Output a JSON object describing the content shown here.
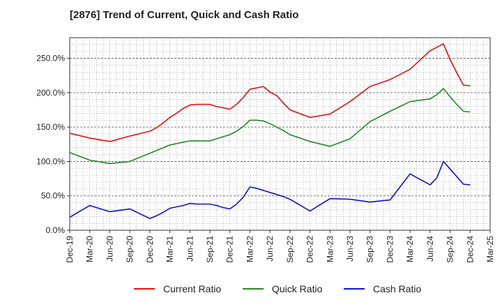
{
  "chart_data": {
    "type": "line",
    "title": "[2876]  Trend of Current, Quick and Cash Ratio",
    "xlabel": "",
    "ylabel": "",
    "ylim": [
      0,
      280
    ],
    "y_ticks": [
      0,
      50,
      100,
      150,
      200,
      250
    ],
    "y_tick_labels": [
      "0.0%",
      "50.0%",
      "100.0%",
      "150.0%",
      "200.0%",
      "250.0%"
    ],
    "x_tick_labels": [
      "Dec-19",
      "Mar-20",
      "Jun-20",
      "Sep-20",
      "Dec-20",
      "Mar-21",
      "Jun-21",
      "Sep-21",
      "Dec-21",
      "Mar-22",
      "Jun-22",
      "Sep-22",
      "Dec-22",
      "Mar-23",
      "Jun-23",
      "Sep-23",
      "Dec-23",
      "Mar-24",
      "Jun-24",
      "Sep-24",
      "Dec-24",
      "Mar-25"
    ],
    "x_index_range": [
      0,
      63
    ],
    "grid": true,
    "legend_position": "bottom",
    "series": [
      {
        "name": "Current Ratio",
        "color": "#dd1111",
        "x": [
          0,
          3,
          6,
          9,
          12,
          13,
          14,
          15,
          16,
          17,
          18,
          19,
          20,
          21,
          22,
          23,
          24,
          25,
          26,
          27,
          28,
          29,
          30,
          31,
          32,
          33,
          36,
          39,
          42,
          45,
          48,
          51,
          54,
          55,
          56,
          57,
          58,
          59,
          60
        ],
        "values": [
          141,
          134,
          129,
          137,
          144,
          149,
          156,
          164,
          170,
          177,
          182,
          183,
          183,
          183,
          180,
          178,
          176,
          183,
          193,
          205,
          207,
          209,
          201,
          196,
          185,
          175,
          164,
          169,
          187,
          209,
          219,
          234,
          261,
          266,
          271,
          248,
          229,
          211,
          210
        ]
      },
      {
        "name": "Quick Ratio",
        "color": "#228822",
        "x": [
          0,
          3,
          6,
          9,
          12,
          13,
          14,
          15,
          16,
          17,
          18,
          19,
          20,
          21,
          22,
          23,
          24,
          25,
          26,
          27,
          28,
          29,
          30,
          31,
          32,
          33,
          36,
          39,
          42,
          45,
          48,
          51,
          54,
          55,
          56,
          57,
          58,
          59,
          60
        ],
        "values": [
          113,
          102,
          97,
          100,
          112,
          116,
          120,
          124,
          126,
          128,
          130,
          130,
          130,
          130,
          133,
          136,
          139,
          144,
          151,
          160,
          160,
          159,
          155,
          150,
          145,
          139,
          129,
          122,
          133,
          158,
          173,
          187,
          191,
          197,
          206,
          194,
          183,
          173,
          172
        ]
      },
      {
        "name": "Cash Ratio",
        "color": "#1111cc",
        "x": [
          0,
          3,
          6,
          9,
          12,
          13,
          14,
          15,
          16,
          17,
          18,
          19,
          20,
          21,
          22,
          23,
          24,
          25,
          26,
          27,
          28,
          29,
          30,
          31,
          32,
          33,
          36,
          39,
          42,
          45,
          48,
          51,
          54,
          55,
          56,
          57,
          58,
          59,
          60
        ],
        "values": [
          19,
          36,
          27,
          31,
          17,
          21,
          26,
          32,
          34,
          36,
          39,
          38,
          38,
          38,
          36,
          33,
          31,
          38,
          48,
          63,
          61,
          58,
          55,
          52,
          49,
          45,
          28,
          46,
          45,
          41,
          44,
          82,
          66,
          76,
          100,
          89,
          78,
          67,
          66
        ]
      }
    ]
  }
}
